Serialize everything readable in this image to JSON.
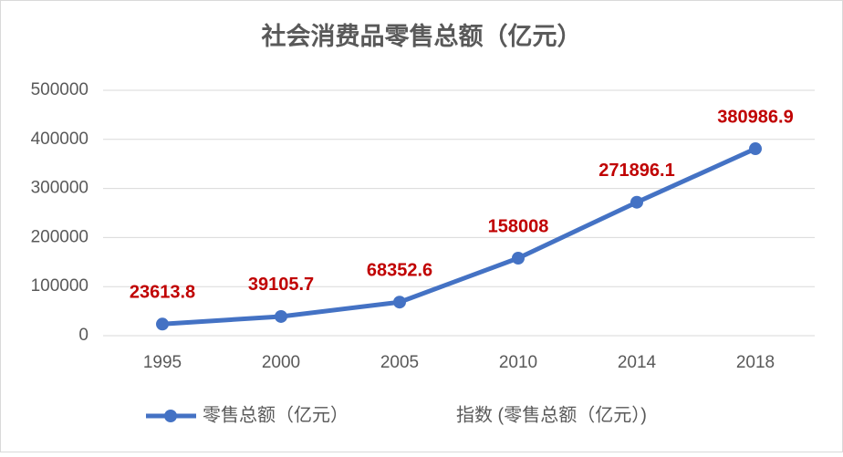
{
  "chart_data": {
    "type": "line",
    "title": "社会消费品零售总额（亿元）",
    "categories": [
      "1995",
      "2000",
      "2005",
      "2010",
      "2014",
      "2018"
    ],
    "series": [
      {
        "name": "零售总额（亿元）",
        "color": "#4472c4",
        "values": [
          23613.8,
          39105.7,
          68352.6,
          158008,
          271896.1,
          380986.9
        ]
      },
      {
        "name": "指数 (零售总额（亿元）)",
        "values": [
          null,
          null,
          null,
          null,
          null,
          null
        ]
      }
    ],
    "ylim": [
      0,
      500000
    ],
    "yticks": [
      0,
      100000,
      200000,
      300000,
      400000,
      500000
    ],
    "grid": true,
    "legend": "bottom"
  }
}
